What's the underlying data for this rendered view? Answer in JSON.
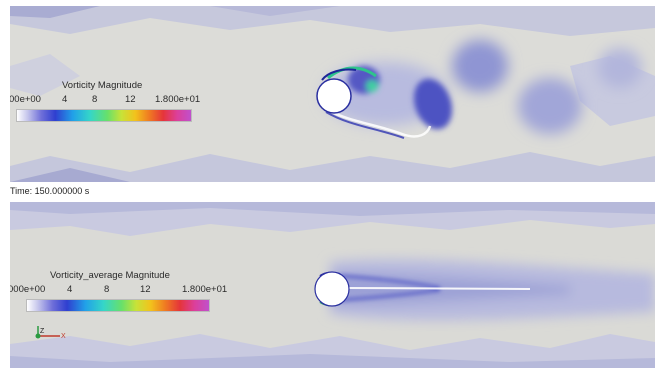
{
  "top_panel": {
    "legend_title": "Vorticity Magnitude",
    "ticks": [
      "00e+00",
      "4",
      "8",
      "12",
      "1.800e+01"
    ]
  },
  "time_label": "Time: 150.000000 s",
  "bottom_panel": {
    "legend_title": "Vorticity_average Magnitude",
    "ticks": [
      "000e+00",
      "4",
      "8",
      "12",
      "1.800e+01"
    ]
  },
  "axes_glyph": {
    "z_label": "Z",
    "x_label": "X"
  },
  "colors": {
    "background": "#d8d7d2",
    "field_low": "#c9cbe0",
    "field_mid": "#8b90cf",
    "field_high": "#3f44b8",
    "accent_green": "#39d08a",
    "cylinder": "#ffffff"
  }
}
